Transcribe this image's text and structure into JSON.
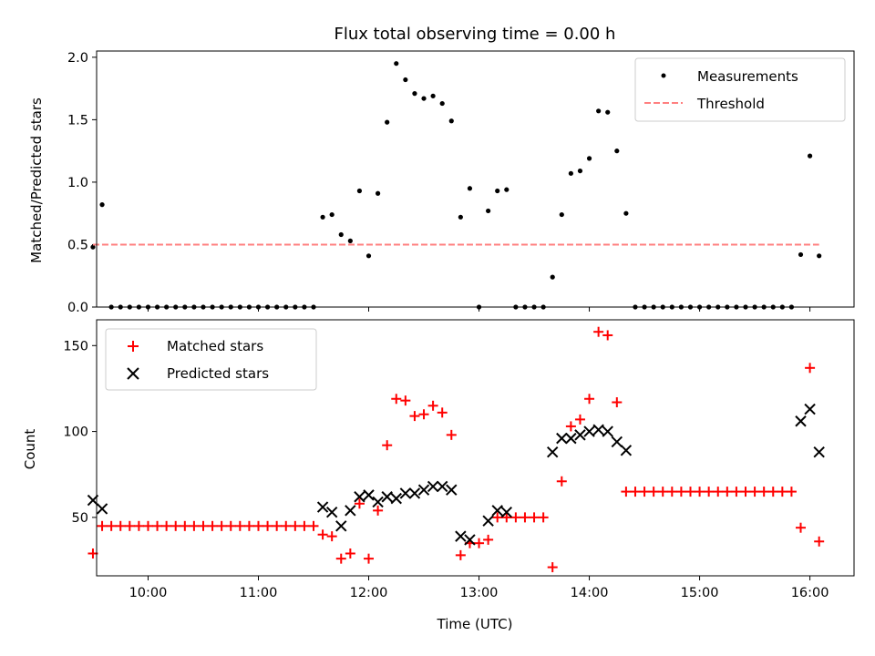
{
  "chart_data": [
    {
      "type": "scatter",
      "title": "Flux total observing time = 0.00 h",
      "ylabel": "Matched/Predicted stars",
      "xlabel": "",
      "xlim": [
        "09:32",
        "16:24"
      ],
      "ylim": [
        0,
        2.05
      ],
      "yticks": [
        "0.0",
        "0.5",
        "1.0",
        "1.5",
        "2.0"
      ],
      "ytick_values": [
        0,
        0.5,
        1.0,
        1.5,
        2.0
      ],
      "legend_position": "top-right",
      "series": [
        {
          "name": "Measurements",
          "marker": "dot",
          "color": "#000000",
          "points": [
            [
              "09:30",
              0.48
            ],
            [
              "09:35",
              0.82
            ],
            [
              "09:40",
              0
            ],
            [
              "09:45",
              0
            ],
            [
              "09:50",
              0
            ],
            [
              "09:55",
              0
            ],
            [
              "10:00",
              0
            ],
            [
              "10:05",
              0
            ],
            [
              "10:10",
              0
            ],
            [
              "10:15",
              0
            ],
            [
              "10:20",
              0
            ],
            [
              "10:25",
              0
            ],
            [
              "10:30",
              0
            ],
            [
              "10:35",
              0
            ],
            [
              "10:40",
              0
            ],
            [
              "10:45",
              0
            ],
            [
              "10:50",
              0
            ],
            [
              "10:55",
              0
            ],
            [
              "11:00",
              0
            ],
            [
              "11:05",
              0
            ],
            [
              "11:10",
              0
            ],
            [
              "11:15",
              0
            ],
            [
              "11:20",
              0
            ],
            [
              "11:25",
              0
            ],
            [
              "11:30",
              0
            ],
            [
              "11:35",
              0.72
            ],
            [
              "11:40",
              0.74
            ],
            [
              "11:45",
              0.58
            ],
            [
              "11:50",
              0.53
            ],
            [
              "11:55",
              0.93
            ],
            [
              "12:00",
              0.41
            ],
            [
              "12:05",
              0.91
            ],
            [
              "12:10",
              1.48
            ],
            [
              "12:15",
              1.95
            ],
            [
              "12:20",
              1.82
            ],
            [
              "12:25",
              1.71
            ],
            [
              "12:30",
              1.67
            ],
            [
              "12:35",
              1.69
            ],
            [
              "12:40",
              1.63
            ],
            [
              "12:45",
              1.49
            ],
            [
              "12:50",
              0.72
            ],
            [
              "12:55",
              0.95
            ],
            [
              "13:00",
              0
            ],
            [
              "13:05",
              0.77
            ],
            [
              "13:10",
              0.93
            ],
            [
              "13:15",
              0.94
            ],
            [
              "13:20",
              0
            ],
            [
              "13:25",
              0
            ],
            [
              "13:30",
              0
            ],
            [
              "13:35",
              0
            ],
            [
              "13:40",
              0.24
            ],
            [
              "13:45",
              0.74
            ],
            [
              "13:50",
              1.07
            ],
            [
              "13:55",
              1.09
            ],
            [
              "14:00",
              1.19
            ],
            [
              "14:05",
              1.57
            ],
            [
              "14:10",
              1.56
            ],
            [
              "14:15",
              1.25
            ],
            [
              "14:20",
              0.75
            ],
            [
              "14:25",
              0
            ],
            [
              "14:30",
              0
            ],
            [
              "14:35",
              0
            ],
            [
              "14:40",
              0
            ],
            [
              "14:45",
              0
            ],
            [
              "14:50",
              0
            ],
            [
              "14:55",
              0
            ],
            [
              "15:00",
              0
            ],
            [
              "15:05",
              0
            ],
            [
              "15:10",
              0
            ],
            [
              "15:15",
              0
            ],
            [
              "15:20",
              0
            ],
            [
              "15:25",
              0
            ],
            [
              "15:30",
              0
            ],
            [
              "15:35",
              0
            ],
            [
              "15:40",
              0
            ],
            [
              "15:45",
              0
            ],
            [
              "15:50",
              0
            ],
            [
              "15:55",
              0.42
            ],
            [
              "16:00",
              1.21
            ],
            [
              "16:05",
              0.41
            ]
          ]
        },
        {
          "name": "Threshold",
          "marker": "dashed-line",
          "color": "#ff8080",
          "points": [
            [
              "09:30",
              0.5
            ],
            [
              "16:05",
              0.5
            ]
          ]
        }
      ]
    },
    {
      "type": "scatter",
      "title": "",
      "ylabel": "Count",
      "xlabel": "Time (UTC)",
      "xlim": [
        "09:32",
        "16:24"
      ],
      "ylim": [
        16,
        165
      ],
      "yticks": [
        "50",
        "100",
        "150"
      ],
      "ytick_values": [
        50,
        100,
        150
      ],
      "xticks": [
        "10:00",
        "11:00",
        "12:00",
        "13:00",
        "14:00",
        "15:00",
        "16:00"
      ],
      "legend_position": "top-left",
      "series": [
        {
          "name": "Matched stars",
          "marker": "plus",
          "color": "#ff0000",
          "points": [
            [
              "09:30",
              29
            ],
            [
              "09:35",
              45
            ],
            [
              "09:40",
              45
            ],
            [
              "09:45",
              45
            ],
            [
              "09:50",
              45
            ],
            [
              "09:55",
              45
            ],
            [
              "10:00",
              45
            ],
            [
              "10:05",
              45
            ],
            [
              "10:10",
              45
            ],
            [
              "10:15",
              45
            ],
            [
              "10:20",
              45
            ],
            [
              "10:25",
              45
            ],
            [
              "10:30",
              45
            ],
            [
              "10:35",
              45
            ],
            [
              "10:40",
              45
            ],
            [
              "10:45",
              45
            ],
            [
              "10:50",
              45
            ],
            [
              "10:55",
              45
            ],
            [
              "11:00",
              45
            ],
            [
              "11:05",
              45
            ],
            [
              "11:10",
              45
            ],
            [
              "11:15",
              45
            ],
            [
              "11:20",
              45
            ],
            [
              "11:25",
              45
            ],
            [
              "11:30",
              45
            ],
            [
              "11:35",
              40
            ],
            [
              "11:40",
              39
            ],
            [
              "11:45",
              26
            ],
            [
              "11:50",
              29
            ],
            [
              "11:55",
              58
            ],
            [
              "12:00",
              26
            ],
            [
              "12:05",
              54
            ],
            [
              "12:10",
              92
            ],
            [
              "12:15",
              119
            ],
            [
              "12:20",
              118
            ],
            [
              "12:25",
              109
            ],
            [
              "12:30",
              110
            ],
            [
              "12:35",
              115
            ],
            [
              "12:40",
              111
            ],
            [
              "12:45",
              98
            ],
            [
              "12:50",
              28
            ],
            [
              "12:55",
              35
            ],
            [
              "13:00",
              35
            ],
            [
              "13:05",
              37
            ],
            [
              "13:10",
              50
            ],
            [
              "13:15",
              50
            ],
            [
              "13:20",
              50
            ],
            [
              "13:25",
              50
            ],
            [
              "13:30",
              50
            ],
            [
              "13:35",
              50
            ],
            [
              "13:40",
              21
            ],
            [
              "13:45",
              71
            ],
            [
              "13:50",
              103
            ],
            [
              "13:55",
              107
            ],
            [
              "14:00",
              119
            ],
            [
              "14:05",
              158
            ],
            [
              "14:10",
              156
            ],
            [
              "14:15",
              117
            ],
            [
              "14:20",
              65
            ],
            [
              "14:25",
              65
            ],
            [
              "14:30",
              65
            ],
            [
              "14:35",
              65
            ],
            [
              "14:40",
              65
            ],
            [
              "14:45",
              65
            ],
            [
              "14:50",
              65
            ],
            [
              "14:55",
              65
            ],
            [
              "15:00",
              65
            ],
            [
              "15:05",
              65
            ],
            [
              "15:10",
              65
            ],
            [
              "15:15",
              65
            ],
            [
              "15:20",
              65
            ],
            [
              "15:25",
              65
            ],
            [
              "15:30",
              65
            ],
            [
              "15:35",
              65
            ],
            [
              "15:40",
              65
            ],
            [
              "15:45",
              65
            ],
            [
              "15:50",
              65
            ],
            [
              "15:55",
              44
            ],
            [
              "16:00",
              137
            ],
            [
              "16:05",
              36
            ]
          ]
        },
        {
          "name": "Predicted stars",
          "marker": "x",
          "color": "#000000",
          "points": [
            [
              "09:30",
              60
            ],
            [
              "09:35",
              55
            ],
            [
              "11:35",
              56
            ],
            [
              "11:40",
              53
            ],
            [
              "11:45",
              45
            ],
            [
              "11:50",
              54
            ],
            [
              "11:55",
              62
            ],
            [
              "12:00",
              63
            ],
            [
              "12:05",
              59
            ],
            [
              "12:10",
              62
            ],
            [
              "12:15",
              61
            ],
            [
              "12:20",
              64
            ],
            [
              "12:25",
              64
            ],
            [
              "12:30",
              66
            ],
            [
              "12:35",
              68
            ],
            [
              "12:40",
              68
            ],
            [
              "12:45",
              66
            ],
            [
              "12:50",
              39
            ],
            [
              "12:55",
              37
            ],
            [
              "13:05",
              48
            ],
            [
              "13:10",
              54
            ],
            [
              "13:15",
              53
            ],
            [
              "13:40",
              88
            ],
            [
              "13:45",
              96
            ],
            [
              "13:50",
              96
            ],
            [
              "13:55",
              98
            ],
            [
              "14:00",
              100
            ],
            [
              "14:05",
              101
            ],
            [
              "14:10",
              100
            ],
            [
              "14:15",
              94
            ],
            [
              "14:20",
              89
            ],
            [
              "15:55",
              106
            ],
            [
              "16:00",
              113
            ],
            [
              "16:05",
              88
            ]
          ]
        }
      ]
    }
  ]
}
